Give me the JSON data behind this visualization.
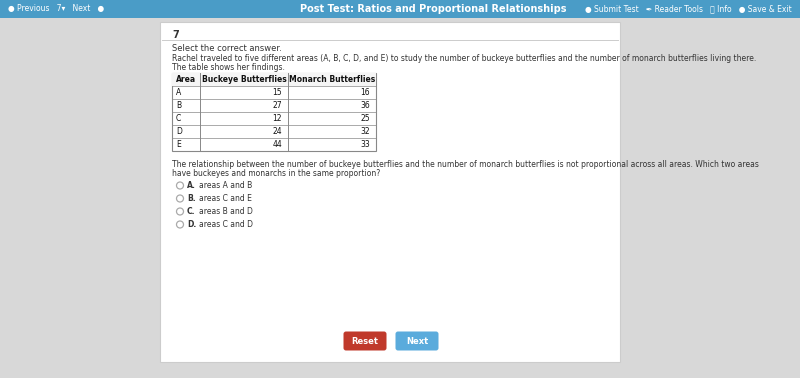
{
  "title_bar_color": "#4a9cc7",
  "title_bar_text": "Post Test: Ratios and Proportional Relationships",
  "bg_color": "#d8d8d8",
  "card_bg": "#ffffff",
  "card_border": "#cccccc",
  "question_number": "7",
  "instruction": "Select the correct answer.",
  "problem_line1": "Rachel traveled to five different areas (A, B, C, D, and E) to study the number of buckeye butterflies and the number of monarch butterflies living there.",
  "problem_line2": "The table shows her findings.",
  "table_headers": [
    "Area",
    "Buckeye Butterflies",
    "Monarch Butterflies"
  ],
  "table_data": [
    [
      "A",
      "15",
      "16"
    ],
    [
      "B",
      "27",
      "36"
    ],
    [
      "C",
      "12",
      "25"
    ],
    [
      "D",
      "24",
      "32"
    ],
    [
      "E",
      "44",
      "33"
    ]
  ],
  "question_line1": "The relationship between the number of buckeye butterflies and the number of monarch butterflies is not proportional across all areas. Which two areas",
  "question_line2": "have buckeyes and monarchs in the same proportion?",
  "choices": [
    [
      "A.",
      "areas A and B"
    ],
    [
      "B.",
      "areas C and E"
    ],
    [
      "C.",
      "areas B and D"
    ],
    [
      "D.",
      "areas C and D"
    ]
  ],
  "reset_btn_color": "#c0392b",
  "next_btn_color": "#5aabdc",
  "reset_text": "Reset",
  "next_text": "Next",
  "nav_left": "● Previous   7▾   Next   ●",
  "nav_right": "● Submit Test   ✒ Reader Tools   ⓘ Info   ● Save & Exit"
}
